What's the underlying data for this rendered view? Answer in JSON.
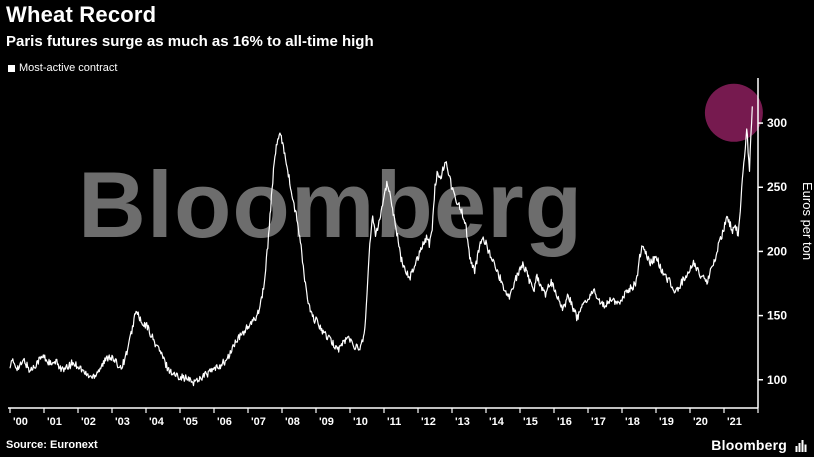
{
  "header": {
    "title": "Wheat Record",
    "subtitle": "Paris futures surge as much as 16% to all-time high"
  },
  "legend": {
    "label": "Most-active contract",
    "marker_color": "#ffffff"
  },
  "watermark": "Bloomberg",
  "footer": {
    "source": "Source: Euronext",
    "brand": "Bloomberg"
  },
  "chart_data": {
    "type": "line",
    "title": "Wheat Record",
    "ylabel": "Euros per ton",
    "yticks": [
      100,
      150,
      200,
      250,
      300
    ],
    "ylim": [
      78,
      332
    ],
    "xtick_labels": [
      "'00",
      "'01",
      "'02",
      "'03",
      "'04",
      "'05",
      "'06",
      "'07",
      "'08",
      "'09",
      "'10",
      "'11",
      "'12",
      "'13",
      "'14",
      "'15",
      "'16",
      "'17",
      "'18",
      "'19",
      "'20",
      "'21"
    ],
    "grid": false,
    "legend_position": "top-left",
    "background": "#000000",
    "line_color": "#ffffff",
    "render_noise": 3,
    "highlight": {
      "month_index": 255.5,
      "value": 308,
      "radius_px": 29,
      "color": "#761a4f"
    },
    "series": [
      {
        "name": "Most-active contract",
        "color": "#ffffff",
        "x_start_year": 2000,
        "interval": "monthly",
        "values": [
          112,
          114,
          111,
          109,
          112,
          115,
          111,
          107,
          109,
          112,
          115,
          117,
          118,
          115,
          113,
          111,
          114,
          112,
          109,
          107,
          109,
          111,
          113,
          112,
          111,
          109,
          106,
          104,
          103,
          102,
          104,
          107,
          110,
          113,
          116,
          119,
          117,
          114,
          112,
          110,
          113,
          120,
          128,
          138,
          150,
          153,
          146,
          141,
          143,
          139,
          134,
          129,
          126,
          122,
          117,
          112,
          108,
          106,
          104,
          103,
          103,
          102,
          101,
          100,
          99,
          98,
          100,
          101,
          103,
          104,
          105,
          107,
          108,
          109,
          111,
          113,
          114,
          117,
          122,
          127,
          130,
          133,
          136,
          139,
          141,
          143,
          146,
          150,
          156,
          166,
          180,
          205,
          235,
          262,
          283,
          290,
          287,
          276,
          264,
          250,
          238,
          228,
          215,
          198,
          178,
          163,
          153,
          148,
          146,
          143,
          139,
          136,
          133,
          131,
          128,
          126,
          124,
          127,
          130,
          133,
          131,
          128,
          126,
          124,
          127,
          136,
          165,
          205,
          228,
          214,
          221,
          232,
          243,
          252,
          246,
          234,
          222,
          208,
          194,
          189,
          184,
          179,
          184,
          191,
          196,
          202,
          207,
          211,
          206,
          217,
          252,
          262,
          256,
          266,
          271,
          259,
          249,
          244,
          238,
          233,
          228,
          218,
          199,
          189,
          184,
          196,
          206,
          211,
          206,
          200,
          195,
          189,
          184,
          179,
          174,
          169,
          164,
          171,
          176,
          181,
          186,
          191,
          185,
          179,
          174,
          171,
          181,
          176,
          169,
          167,
          173,
          176,
          171,
          166,
          161,
          156,
          159,
          166,
          161,
          154,
          149,
          151,
          156,
          161,
          163,
          166,
          169,
          166,
          161,
          159,
          157,
          161,
          163,
          161,
          158,
          161,
          163,
          166,
          169,
          171,
          173,
          176,
          191,
          206,
          201,
          196,
          191,
          193,
          196,
          191,
          186,
          181,
          178,
          176,
          172,
          169,
          172,
          176,
          179,
          181,
          186,
          191,
          188,
          184,
          181,
          179,
          177,
          183,
          189,
          193,
          206,
          211,
          218,
          228,
          222,
          215,
          220,
          213,
          240,
          268,
          296,
          263,
          313
        ]
      }
    ]
  }
}
